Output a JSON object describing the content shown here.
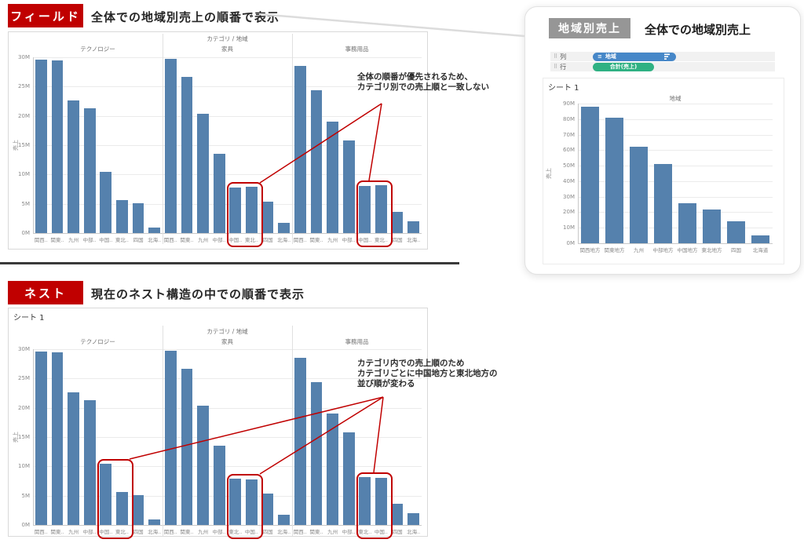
{
  "colors": {
    "accent_red": "#c00000",
    "bar": "#5581ad",
    "pill_blue": "#4687c8",
    "pill_green": "#2fb183",
    "badge_gray": "#969696"
  },
  "field_section": {
    "badge": "フィールド",
    "heading": "全体での地域別売上の順番で表示",
    "annotation": [
      "全体の順番が優先されるため、",
      "カテゴリ別での売上順と一致しない"
    ]
  },
  "nest_section": {
    "badge": "ネスト",
    "heading": "現在のネスト構造の中での順番で表示",
    "annotation": [
      "カテゴリ内での売上順のため",
      "カテゴリごとに中国地方と東北地方の",
      "並び順が変わる"
    ]
  },
  "tableau_panel": {
    "badge": "地域別売上",
    "heading": "全体での地域別売上",
    "shelves": [
      {
        "label": "列",
        "pill": "地域"
      },
      {
        "label": "行",
        "pill": "合計(売上)"
      }
    ]
  },
  "chart_data": [
    {
      "id": "chart-field",
      "type": "bar",
      "title": "カテゴリ / 地域",
      "ylabel": "売上",
      "y_unit": "M",
      "ylim_m": [
        0,
        30
      ],
      "ytick_m": 5,
      "sheet_label": null,
      "panes": [
        {
          "name": "テクノロジー",
          "categories": [
            "関西..",
            "関東..",
            "九州",
            "中部..",
            "中国..",
            "東北..",
            "四国",
            "北海.."
          ],
          "values_m": [
            29.6,
            29.5,
            22.6,
            21.3,
            10.5,
            5.6,
            5.1,
            1.0
          ],
          "highlight": null
        },
        {
          "name": "家具",
          "categories": [
            "関西..",
            "関東..",
            "九州",
            "中部..",
            "中国..",
            "東北..",
            "四国",
            "北海.."
          ],
          "values_m": [
            29.8,
            26.7,
            20.4,
            13.5,
            7.8,
            7.9,
            5.3,
            1.8
          ],
          "highlight": [
            4,
            5
          ]
        },
        {
          "name": "事務用品",
          "categories": [
            "関西..",
            "関東..",
            "九州",
            "中部..",
            "中国..",
            "東北..",
            "四国",
            "北海.."
          ],
          "values_m": [
            28.5,
            24.4,
            19.0,
            15.8,
            8.0,
            8.2,
            3.6,
            2.0
          ],
          "highlight": [
            4,
            5
          ]
        }
      ]
    },
    {
      "id": "chart-nest",
      "type": "bar",
      "title": "カテゴリ / 地域",
      "ylabel": "売上",
      "y_unit": "M",
      "ylim_m": [
        0,
        30
      ],
      "ytick_m": 5,
      "sheet_label": "シート 1",
      "panes": [
        {
          "name": "テクノロジー",
          "categories": [
            "関西..",
            "関東..",
            "九州",
            "中部..",
            "中国..",
            "東北..",
            "四国",
            "北海.."
          ],
          "values_m": [
            29.6,
            29.5,
            22.6,
            21.3,
            10.5,
            5.6,
            5.1,
            1.0
          ],
          "highlight": [
            4,
            5
          ]
        },
        {
          "name": "家具",
          "categories": [
            "関西..",
            "関東..",
            "九州",
            "中部..",
            "東北..",
            "中国..",
            "四国",
            "北海.."
          ],
          "values_m": [
            29.8,
            26.7,
            20.4,
            13.5,
            7.9,
            7.8,
            5.3,
            1.8
          ],
          "highlight": [
            4,
            5
          ]
        },
        {
          "name": "事務用品",
          "categories": [
            "関西..",
            "関東..",
            "九州",
            "中部..",
            "東北..",
            "中国..",
            "四国",
            "北海.."
          ],
          "values_m": [
            28.5,
            24.4,
            19.0,
            15.8,
            8.2,
            8.0,
            3.6,
            2.0
          ],
          "highlight": [
            4,
            5
          ]
        }
      ]
    },
    {
      "id": "chart-region",
      "type": "bar",
      "title": null,
      "ylabel": "売上",
      "y_unit": "M",
      "ylim_m": [
        0,
        90
      ],
      "ytick_m": 10,
      "sheet_label": "シート 1",
      "panes": [
        {
          "name": "地域",
          "categories": [
            "関西地方",
            "関東地方",
            "九州",
            "中部地方",
            "中国地方",
            "東北地方",
            "四国",
            "北海道"
          ],
          "values_m": [
            88,
            81,
            62,
            51,
            26,
            22,
            14,
            5
          ],
          "highlight": null
        }
      ]
    }
  ]
}
